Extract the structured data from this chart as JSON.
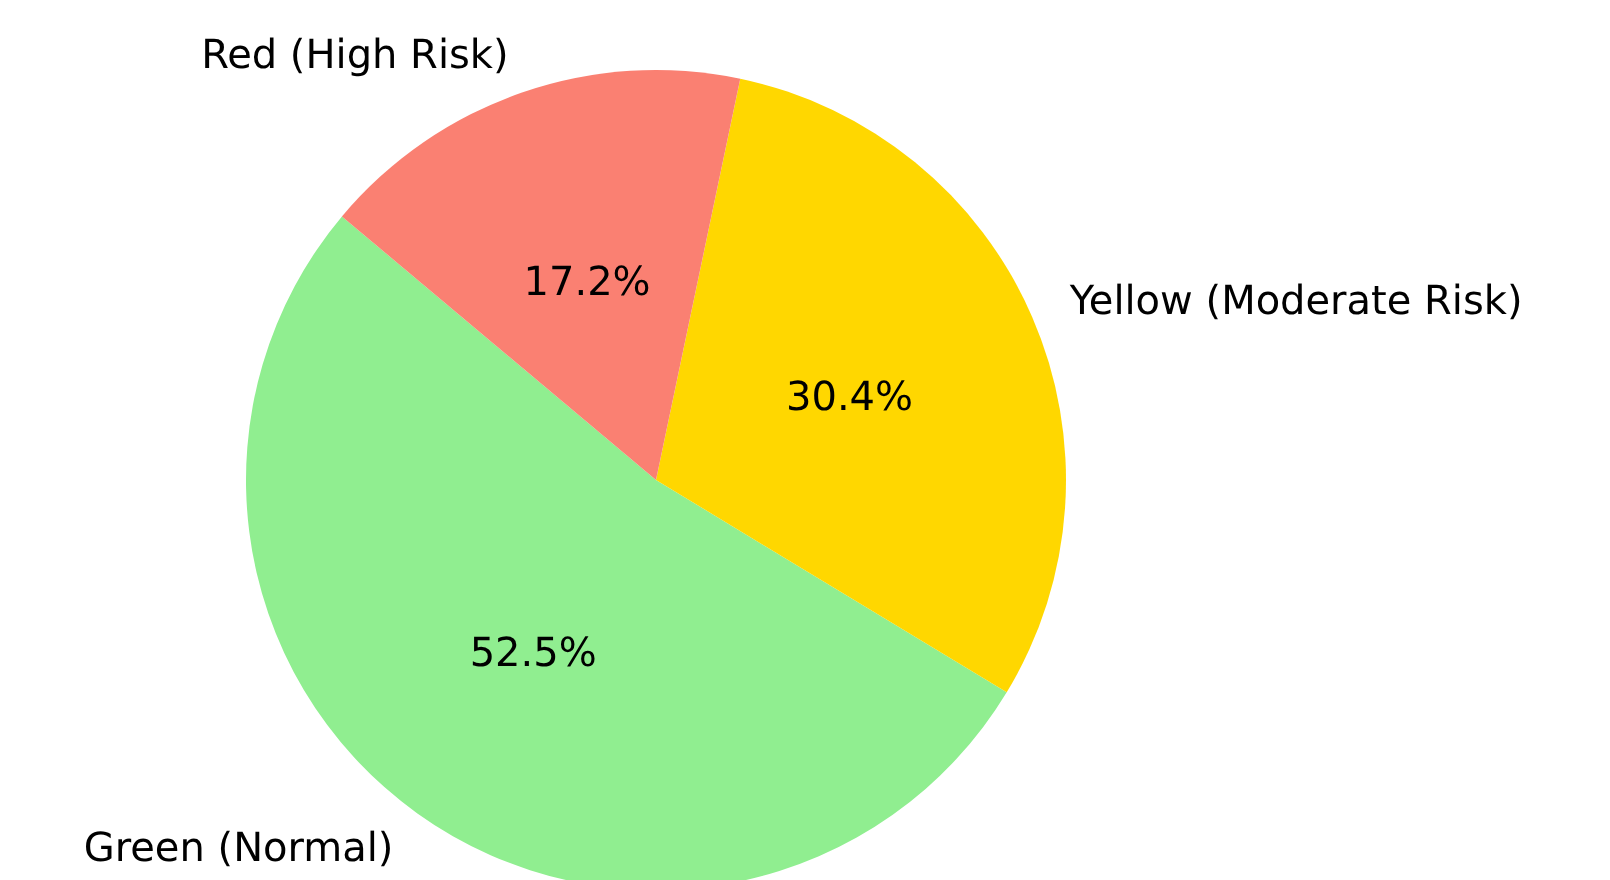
{
  "chart_data": {
    "type": "pie",
    "categories": [
      "Green (Normal)",
      "Yellow (Moderate Risk)",
      "Red (High Risk)"
    ],
    "values": [
      52.5,
      30.4,
      17.2
    ],
    "value_labels": [
      "52.5%",
      "30.4%",
      "17.2%"
    ],
    "colors": [
      "#90ee90",
      "#ffd700",
      "#fa8072"
    ],
    "legend": false
  }
}
